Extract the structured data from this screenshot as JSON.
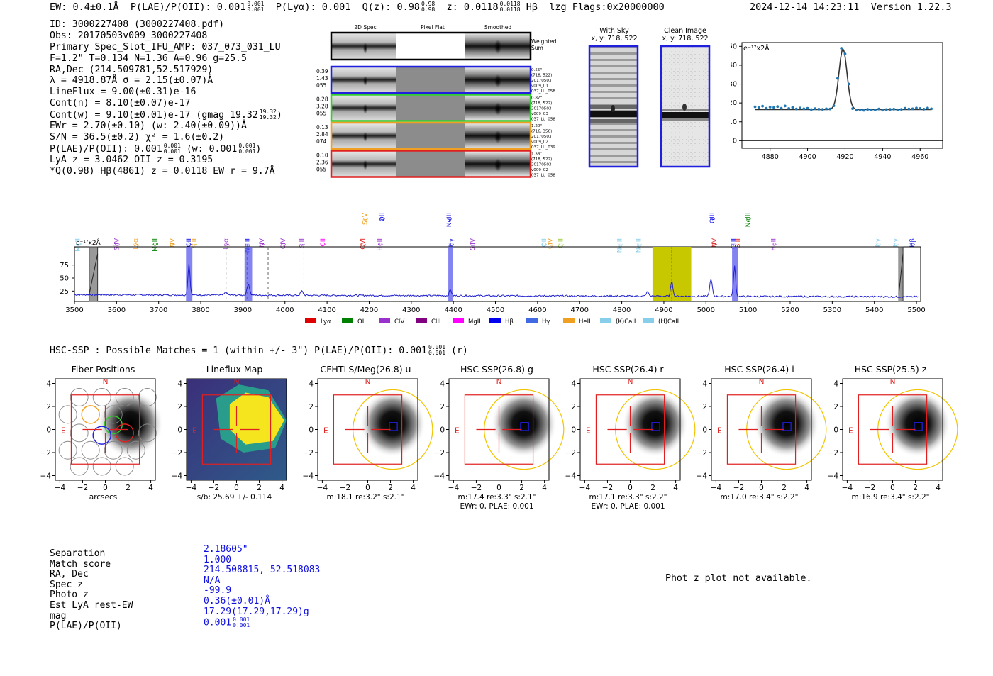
{
  "header": {
    "ew": "EW: 0.4±0.1Å",
    "plae_label": "P(LAE)/P(OII): 0.001",
    "plae_hi": "0.001",
    "plae_lo": "0.001",
    "plya": "P(Lyα): 0.001",
    "qz_label": "Q(z): 0.98",
    "qz_hi": "0.98",
    "qz_lo": "0.98",
    "z_label": "z: 0.0118",
    "z_hi": "0.0118",
    "z_lo": "0.0118",
    "line": "Hβ",
    "flags_text": "lzg  Flags:0x20000000",
    "timestamp": "2024-12-14 14:23:11",
    "version": "Version 1.22.3"
  },
  "info": {
    "id": "ID: 3000227408 (3000227408.pdf)",
    "obs": "Obs: 20170503v009_3000227408",
    "primary": "Primary Spec_Slot_IFU_AMP: 037_073_031_LU",
    "fit": "F=1.2\"  T=0.134  N=1.36  A=0.96  g=25.5",
    "radec": "RA,Dec (214.509781,52.517929)",
    "lambda": "λ = 4918.87Å  σ = 2.15(±0.07)Å",
    "lineflux": "LineFlux = 9.00(±0.31)e-16",
    "contn": "Cont(n) = 8.10(±0.07)e-17",
    "contw": "Cont(w) = 9.10(±0.01)e-17 (gmag 19.32",
    "contw_hi": "19.32",
    "contw_lo": "19.32",
    "ewr": "EWr = 2.70(±0.10) (w: 2.40(±0.09))Å",
    "sn": "S/N = 36.5(±0.2)  χ² = 1.6(±0.2)",
    "plae": "P(LAE)/P(OII): 0.001",
    "plae_hi": "0.001",
    "plae_lo": "0.001",
    "plae_w": "(w: 0.001",
    "plae_w_hi": "0.001",
    "plae_w_lo": "0.001",
    "lya": "LyA z = 3.0462  OII z = 0.3195",
    "q": "*Q(0.98) Hβ(4861) z = 0.0118  EW r = 9.7Å"
  },
  "cutouts": {
    "col_2d": "2D Spec",
    "col_flat": "Pixel Flat",
    "col_smooth": "Smoothed",
    "weighted": "Weighted",
    "sum": "Sum",
    "rows": [
      {
        "color": "#1f1fdd",
        "left": [
          "0.39",
          "1.43",
          "055"
        ],
        "right": [
          "0.55\"",
          "(718, 522)",
          "20170503",
          "v009_01",
          "037_LU_058"
        ]
      },
      {
        "color": "#33cc33",
        "left": [
          "0.28",
          "3.28",
          "055"
        ],
        "right": [
          "0.87\"",
          "(718, 522)",
          "20170503",
          "v009_03",
          "037_LU_058"
        ]
      },
      {
        "color": "#f0a020",
        "left": [
          "0.13",
          "2.84",
          "074"
        ],
        "right": [
          "1.20\"",
          "(716, 356)",
          "20170503",
          "v009_02",
          "037_LU_039"
        ]
      },
      {
        "color": "#e02020",
        "left": [
          "0.10",
          "2.36",
          "055"
        ],
        "right": [
          "1.36\"",
          "(718, 522)",
          "20170503",
          "v009_02",
          "037_LU_058"
        ]
      }
    ],
    "with_sky": "With Sky",
    "clean": "Clean Image",
    "xy_sky": "x, y: 718, 522",
    "xy_clean": "x, y: 718, 522"
  },
  "fit_plot": {
    "unit": "e⁻¹⁷x2Å"
  },
  "spectrum": {
    "unit": "e⁻¹⁷x2Å",
    "lines_low": [
      {
        "label": "MgII",
        "x": 3508,
        "color": "#87ceeb"
      },
      {
        "label": "SiIV",
        "x": 3600,
        "color": "#9932cc"
      },
      {
        "label": "Lyα",
        "x": 3645,
        "color": "#f0a020"
      },
      {
        "label": "MgII",
        "x": 3690,
        "color": "#008000"
      },
      {
        "label": "NV",
        "x": 3732,
        "color": "#f0a020"
      },
      {
        "label": "OII",
        "x": 3771,
        "color": "#0000ee"
      },
      {
        "label": "SiII",
        "x": 3785,
        "color": "#f0a020"
      },
      {
        "label": "Lyα",
        "x": 3860,
        "color": "#9932cc"
      },
      {
        "label": "NeIII",
        "x": 3910,
        "color": "#0000ee"
      },
      {
        "label": "NV",
        "x": 3945,
        "color": "#9932cc"
      },
      {
        "label": "CIV",
        "x": 3995,
        "color": "#9932cc"
      },
      {
        "label": "SiII",
        "x": 4040,
        "color": "#9932cc"
      },
      {
        "label": "CII",
        "x": 4090,
        "color": "#ff00ff"
      },
      {
        "label": "OVI",
        "x": 4185,
        "color": "#e02020"
      },
      {
        "label": "HeII",
        "x": 4225,
        "color": "#9932cc"
      },
      {
        "label": "Hγ",
        "x": 4395,
        "color": "#1f1fdd"
      },
      {
        "label": "SiIV",
        "x": 4445,
        "color": "#9932cc"
      },
      {
        "label": "OII",
        "x": 4615,
        "color": "#87ceeb"
      },
      {
        "label": "CIV",
        "x": 4630,
        "color": "#f0a020"
      },
      {
        "label": "CIII",
        "x": 4655,
        "color": "#9acd32"
      },
      {
        "label": "NeIII",
        "x": 4795,
        "color": "#87ceeb"
      },
      {
        "label": "NeIII",
        "x": 4840,
        "color": "#87ceeb"
      },
      {
        "label": "NV",
        "x": 5020,
        "color": "#e02020"
      },
      {
        "label": "OIII",
        "x": 5065,
        "color": "#0000ee"
      },
      {
        "label": "SiII",
        "x": 5075,
        "color": "#e02020"
      },
      {
        "label": "HeII",
        "x": 5160,
        "color": "#9932cc"
      },
      {
        "label": "Hγ",
        "x": 5408,
        "color": "#87ceeb"
      },
      {
        "label": "Hγ",
        "x": 5450,
        "color": "#87ceeb"
      },
      {
        "label": "Hβ",
        "x": 5490,
        "color": "#1f1fdd"
      }
    ],
    "lines_high": [
      {
        "label": "SiIV",
        "x": 4190,
        "color": "#f0a020"
      },
      {
        "label": "OII",
        "x": 4230,
        "color": "#0000ee"
      },
      {
        "label": "NeIII",
        "x": 4390,
        "color": "#1f1fdd"
      },
      {
        "label": "OIII",
        "x": 5015,
        "color": "#0000ee"
      },
      {
        "label": "NeIII",
        "x": 5100,
        "color": "#008000"
      }
    ],
    "legend": [
      {
        "label": "Lyα",
        "color": "#e00000"
      },
      {
        "label": "OII",
        "color": "#008000"
      },
      {
        "label": "CIV",
        "color": "#9932cc"
      },
      {
        "label": "CIII",
        "color": "#800080"
      },
      {
        "label": "MgII",
        "color": "#ff00ff"
      },
      {
        "label": "Hβ",
        "color": "#0000ee"
      },
      {
        "label": "Hγ",
        "color": "#4169e1"
      },
      {
        "label": "HeII",
        "color": "#f0a020"
      },
      {
        "label": "(K)CaII",
        "color": "#87ceeb"
      },
      {
        "label": "(H)CaII",
        "color": "#87ceeb"
      }
    ]
  },
  "hsc": {
    "title": "HSC-SSP : Possible Matches = 1 (within +/- 3\")  P(LAE)/P(OII): 0.001",
    "hi": "0.001",
    "lo": "0.001",
    "suffix": "(r)",
    "panels": [
      {
        "title": "Fiber Positions",
        "cap1": "arcsecs",
        "cap2": ""
      },
      {
        "title": "Lineflux Map",
        "cap1": "s/b: 25.69 +/- 0.114",
        "cap2": ""
      },
      {
        "title": "CFHTLS/Meg(26.8) u",
        "cap1": "m:18.1  re:3.2\"  s:2.1\"",
        "cap2": ""
      },
      {
        "title": "HSC SSP(26.8) g",
        "cap1": "m:17.4  re:3.3\"  s:2.1\"",
        "cap2": "EWr: 0, PLAE: 0.001"
      },
      {
        "title": "HSC SSP(26.4) r",
        "cap1": "m:17.1  re:3.3\"  s:2.2\"",
        "cap2": "EWr: 0, PLAE: 0.001"
      },
      {
        "title": "HSC SSP(26.4) i",
        "cap1": "m:17.0  re:3.4\"  s:2.2\"",
        "cap2": ""
      },
      {
        "title": "HSC SSP(25.5) z",
        "cap1": "m:16.9  re:3.4\"  s:2.2\"",
        "cap2": ""
      }
    ],
    "compass_n": "N",
    "compass_e": "E"
  },
  "summary": {
    "labels": [
      "Separation",
      "Match score",
      "RA, Dec",
      "Spec z",
      "Photo z",
      "Est LyA rest-EW",
      "mag",
      "P(LAE)/P(OII)"
    ],
    "values": [
      "2.18605\"",
      "1.000",
      "214.508815, 52.518083",
      "N/A",
      "-99.9",
      "0.36(±0.01)Å",
      "17.29(17.29,17.29)g",
      "0.001"
    ],
    "plae_hi": "0.001",
    "plae_lo": "0.001"
  },
  "photz_note": "Phot z plot not available.",
  "chart_data": [
    {
      "type": "line",
      "name": "emission-line-fit",
      "ylabel": "e⁻¹⁷x2Å",
      "xlim": [
        4865,
        4972
      ],
      "ylim": [
        -4,
        52
      ],
      "xticks": [
        4880,
        4900,
        4920,
        4940,
        4960
      ],
      "yticks": [
        0,
        10,
        20,
        30,
        40,
        50
      ],
      "series": [
        {
          "name": "data",
          "x": [
            4872,
            4874,
            4876,
            4878,
            4880,
            4882,
            4884,
            4886,
            4888,
            4890,
            4892,
            4894,
            4896,
            4898,
            4900,
            4902,
            4904,
            4906,
            4908,
            4910,
            4912,
            4914,
            4916,
            4918,
            4920,
            4922,
            4924,
            4926,
            4928,
            4930,
            4932,
            4934,
            4936,
            4938,
            4940,
            4942,
            4944,
            4946,
            4948,
            4950,
            4952,
            4954,
            4956,
            4958,
            4960,
            4962,
            4964,
            4966
          ],
          "y": [
            18,
            17.5,
            18.3,
            17.2,
            17.8,
            17.6,
            18.1,
            17.2,
            18.4,
            17.1,
            17.6,
            16.8,
            17.3,
            16.9,
            17.2,
            16.5,
            17,
            16.7,
            16.6,
            16.9,
            16.8,
            18.5,
            33,
            49,
            46,
            30,
            17,
            16.2,
            16.4,
            16.1,
            16.6,
            16.4,
            16.3,
            16.8,
            16.2,
            16.5,
            16.6,
            16.7,
            16.4,
            16.6,
            17.2,
            16.8,
            16.9,
            17.3,
            17.1,
            16.7,
            17.3,
            16.9
          ]
        },
        {
          "name": "model",
          "continuum": 16.5,
          "peak": 48.5,
          "center": 4918.87,
          "sigma": 2.15
        }
      ]
    },
    {
      "type": "line",
      "name": "full-spectrum",
      "ylabel": "e⁻¹⁷x2Å",
      "xlim": [
        3500,
        5510
      ],
      "ylim": [
        5,
        110
      ],
      "xticks": [
        3500,
        3600,
        3700,
        3800,
        3900,
        4000,
        4100,
        4200,
        4300,
        4400,
        4500,
        4600,
        4700,
        4800,
        4900,
        5000,
        5100,
        5200,
        5300,
        5400,
        5500
      ],
      "yticks": [
        25,
        50,
        75
      ],
      "continuum": 18,
      "peaks": [
        {
          "x": 3772,
          "height": 60,
          "width": 2.5
        },
        {
          "x": 3913,
          "height": 22,
          "width": 3
        },
        {
          "x": 4040,
          "height": 8,
          "width": 3
        },
        {
          "x": 4393,
          "height": 12,
          "width": 2.5
        },
        {
          "x": 4861,
          "height": 8,
          "width": 3
        },
        {
          "x": 4918.9,
          "height": 30,
          "width": 2.5
        },
        {
          "x": 5012,
          "height": 32,
          "width": 3
        },
        {
          "x": 5068,
          "height": 58,
          "width": 2.5
        },
        {
          "x": 3860,
          "height": 6,
          "width": 3
        }
      ],
      "highlight_bands": [
        [
          3765,
          3780
        ],
        [
          3904,
          3922
        ],
        [
          4388,
          4398
        ],
        [
          5062,
          5076
        ]
      ],
      "masked_bands": [
        [
          3535,
          3555
        ],
        [
          5458,
          5468
        ]
      ],
      "yellow_band": [
        4873,
        4965
      ],
      "dashed_lines": [
        3860,
        3910,
        3960,
        4045
      ]
    }
  ]
}
